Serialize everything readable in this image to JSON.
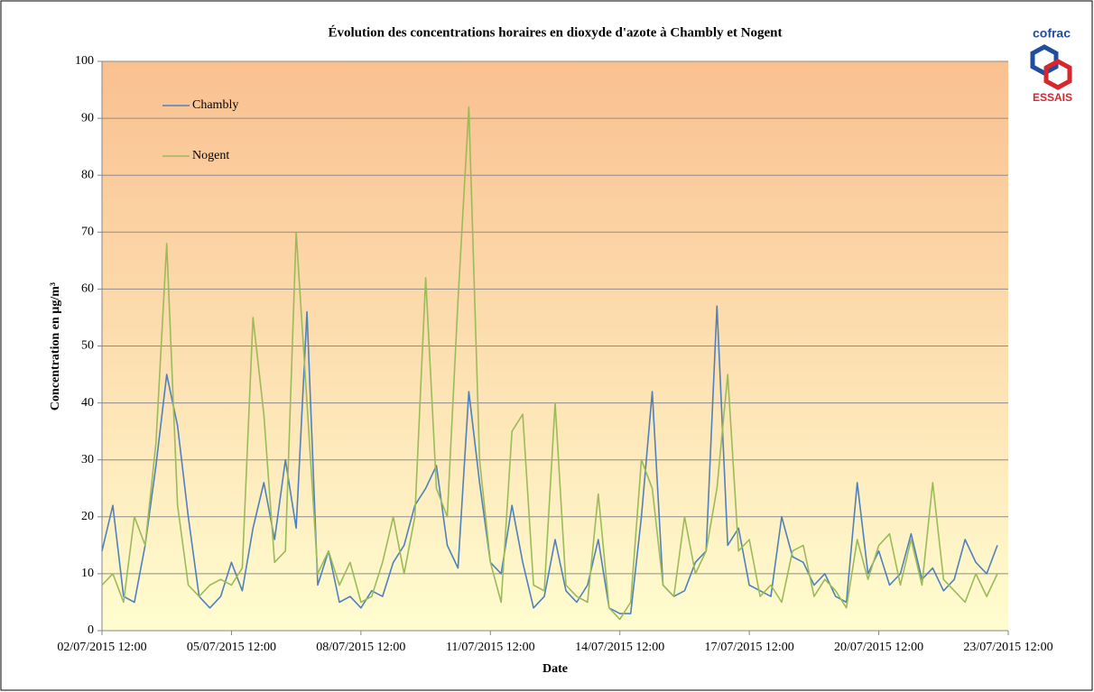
{
  "chart_data": {
    "type": "line",
    "title": "Évolution des concentrations horaires en dioxyde d'azote à Chambly et  Nogent",
    "xlabel": "Date",
    "ylabel": "Concentration en µg/m³",
    "logo": {
      "top": "cofrac",
      "bottom": "ESSAIS"
    },
    "x": [
      "02/07/2015 12:00",
      "02/07/2015 18:00",
      "03/07/2015 00:00",
      "03/07/2015 06:00",
      "03/07/2015 12:00",
      "03/07/2015 18:00",
      "04/07/2015 00:00",
      "04/07/2015 06:00",
      "04/07/2015 12:00",
      "04/07/2015 18:00",
      "05/07/2015 00:00",
      "05/07/2015 06:00",
      "05/07/2015 12:00",
      "05/07/2015 18:00",
      "06/07/2015 00:00",
      "06/07/2015 06:00",
      "06/07/2015 12:00",
      "06/07/2015 18:00",
      "07/07/2015 00:00",
      "07/07/2015 06:00",
      "07/07/2015 12:00",
      "07/07/2015 18:00",
      "08/07/2015 00:00",
      "08/07/2015 06:00",
      "08/07/2015 12:00",
      "08/07/2015 18:00",
      "09/07/2015 00:00",
      "09/07/2015 06:00",
      "09/07/2015 12:00",
      "09/07/2015 18:00",
      "10/07/2015 00:00",
      "10/07/2015 06:00",
      "10/07/2015 12:00",
      "10/07/2015 18:00",
      "11/07/2015 00:00",
      "11/07/2015 06:00",
      "11/07/2015 12:00",
      "11/07/2015 18:00",
      "12/07/2015 00:00",
      "12/07/2015 06:00",
      "12/07/2015 12:00",
      "12/07/2015 18:00",
      "13/07/2015 00:00",
      "13/07/2015 06:00",
      "13/07/2015 12:00",
      "13/07/2015 18:00",
      "14/07/2015 00:00",
      "14/07/2015 06:00",
      "14/07/2015 12:00",
      "14/07/2015 18:00",
      "15/07/2015 00:00",
      "15/07/2015 06:00",
      "15/07/2015 12:00",
      "15/07/2015 18:00",
      "16/07/2015 00:00",
      "16/07/2015 06:00",
      "16/07/2015 12:00",
      "16/07/2015 18:00",
      "17/07/2015 00:00",
      "17/07/2015 06:00",
      "17/07/2015 12:00",
      "17/07/2015 18:00",
      "18/07/2015 00:00",
      "18/07/2015 06:00",
      "18/07/2015 12:00",
      "18/07/2015 18:00",
      "19/07/2015 00:00",
      "19/07/2015 06:00",
      "19/07/2015 12:00",
      "19/07/2015 18:00",
      "20/07/2015 00:00",
      "20/07/2015 06:00",
      "20/07/2015 12:00",
      "20/07/2015 18:00",
      "21/07/2015 00:00",
      "21/07/2015 06:00",
      "21/07/2015 12:00",
      "21/07/2015 18:00",
      "22/07/2015 00:00",
      "22/07/2015 06:00",
      "22/07/2015 12:00",
      "22/07/2015 18:00",
      "23/07/2015 00:00",
      "23/07/2015 06:00"
    ],
    "series": [
      {
        "name": "Chambly",
        "color": "#4f81bd",
        "values": [
          14,
          22,
          6,
          5,
          15,
          29,
          45,
          36,
          20,
          6,
          4,
          6,
          12,
          7,
          18,
          26,
          16,
          30,
          18,
          56,
          8,
          14,
          5,
          6,
          4,
          7,
          6,
          12,
          15,
          22,
          25,
          29,
          15,
          11,
          42,
          26,
          12,
          10,
          22,
          12,
          4,
          6,
          16,
          7,
          5,
          8,
          16,
          4,
          3,
          3,
          20,
          42,
          8,
          6,
          7,
          12,
          14,
          57,
          15,
          18,
          8,
          7,
          6,
          20,
          13,
          12,
          8,
          10,
          6,
          5,
          26,
          10,
          14,
          8,
          10,
          17,
          9,
          11,
          7,
          9,
          16,
          12,
          10,
          15
        ]
      },
      {
        "name": "Nogent",
        "color": "#9bbb59",
        "values": [
          8,
          10,
          5,
          20,
          15,
          33,
          68,
          22,
          8,
          6,
          8,
          9,
          8,
          11,
          55,
          38,
          12,
          14,
          70,
          40,
          10,
          14,
          8,
          12,
          5,
          6,
          12,
          20,
          10,
          20,
          62,
          25,
          20,
          58,
          92,
          30,
          12,
          5,
          35,
          38,
          8,
          7,
          40,
          8,
          6,
          5,
          24,
          4,
          2,
          5,
          30,
          25,
          8,
          6,
          20,
          10,
          14,
          25,
          45,
          14,
          16,
          6,
          8,
          5,
          14,
          15,
          6,
          9,
          7,
          4,
          16,
          9,
          15,
          17,
          8,
          16,
          8,
          26,
          9,
          7,
          5,
          10,
          6,
          10
        ]
      }
    ],
    "xlim": [
      "02/07/2015 12:00",
      "23/07/2015 12:00"
    ],
    "xticks": [
      "02/07/2015 12:00",
      "05/07/2015 12:00",
      "08/07/2015 12:00",
      "11/07/2015 12:00",
      "14/07/2015 12:00",
      "17/07/2015 12:00",
      "20/07/2015 12:00",
      "23/07/2015 12:00"
    ],
    "ylim": [
      0,
      100
    ],
    "yticks": [
      0,
      10,
      20,
      30,
      40,
      50,
      60,
      70,
      80,
      90,
      100
    ],
    "grid": true,
    "legend": "upper left"
  }
}
